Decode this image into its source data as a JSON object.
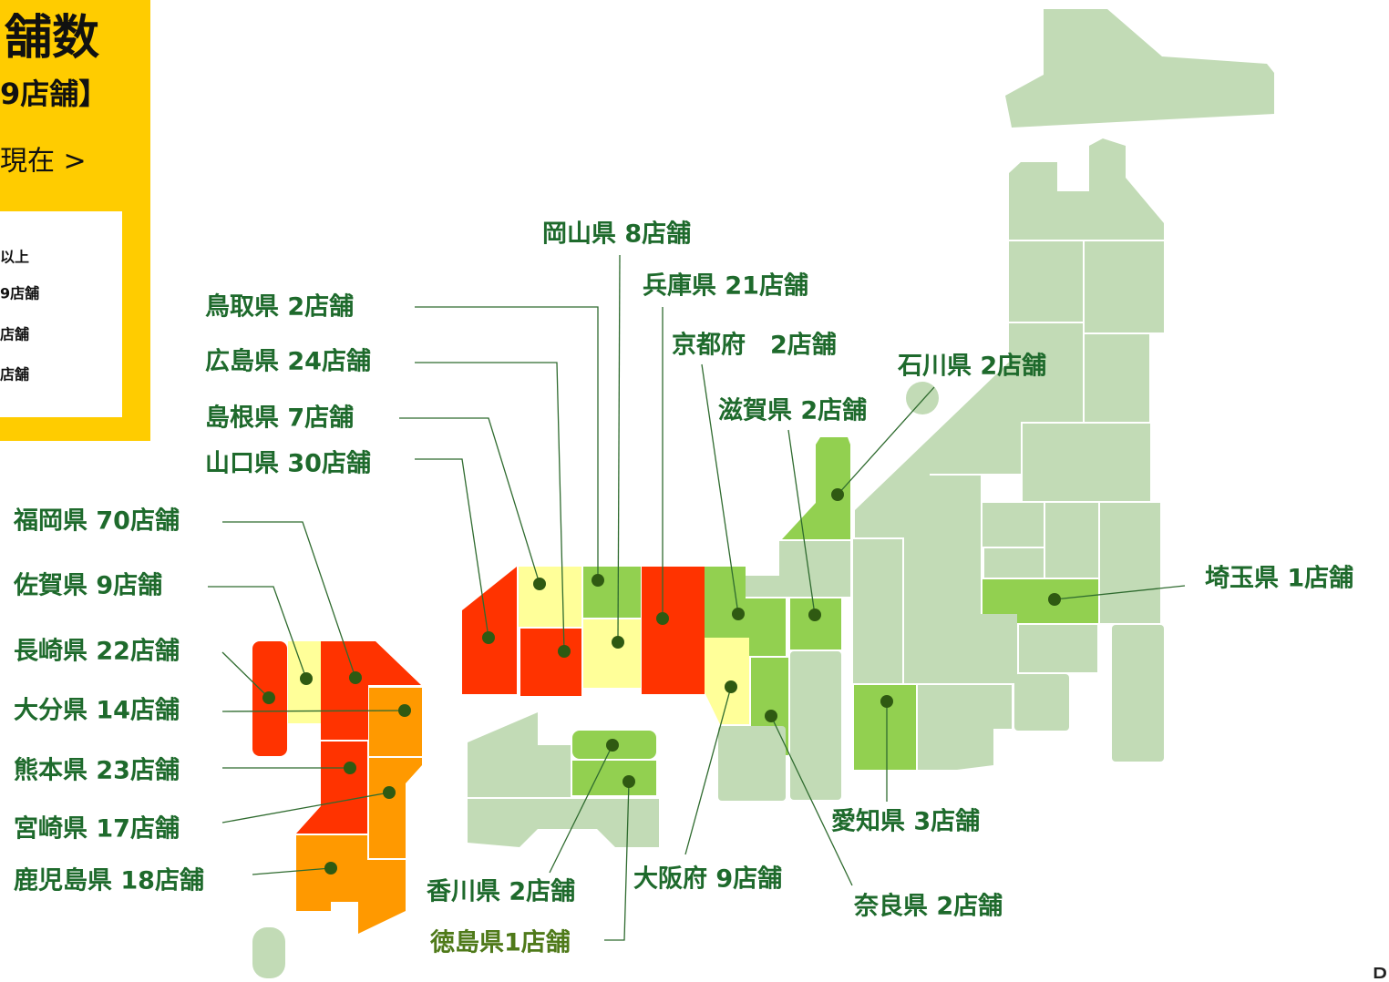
{
  "header": {
    "title": "舗数",
    "total": "9店舗】",
    "date": "現在 >"
  },
  "legend": [
    "以上",
    "9店舗",
    "店舗",
    "店舗"
  ],
  "labels": [
    "岡山県 8店舗",
    "兵庫県 21店舗",
    "京都府　2店舗",
    "石川県 2店舗",
    "滋賀県 2店舗",
    "鳥取県 2店舗",
    "広島県 24店舗",
    "島根県 7店舗",
    "山口県 30店舗",
    "福岡県 70店舗",
    "佐賀県 9店舗",
    "長崎県 22店舗",
    "大分県 14店舗",
    "熊本県 23店舗",
    "宮崎県 17店舗",
    "鹿児島県 18店舗",
    "香川県 2店舗",
    "徳島県1店舗",
    "大阪府 9店舗",
    "奈良県 2店舗",
    "愛知県 3店舗",
    "埼玉県 1店舗"
  ],
  "footer": "P"
}
